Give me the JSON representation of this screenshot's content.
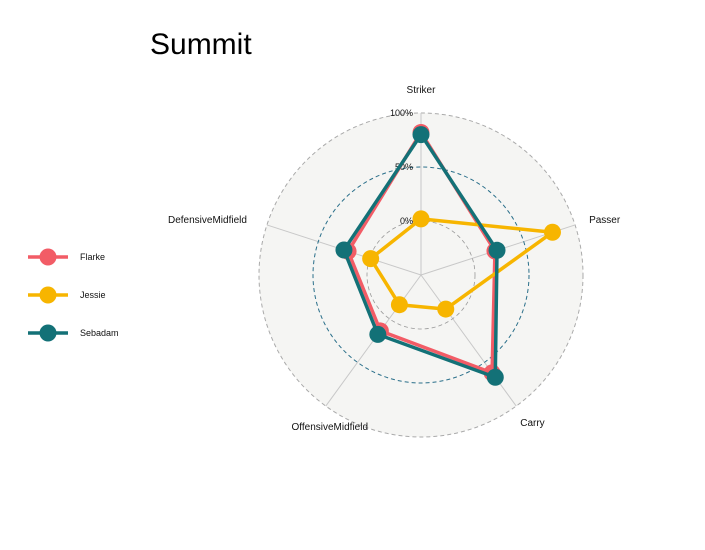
{
  "chart_data": {
    "type": "radar",
    "title": "Summit",
    "axes": [
      "Striker",
      "Passer",
      "Carry",
      "OffensiveMidfield",
      "DefensiveMidfield"
    ],
    "grid_labels": [
      "0%",
      "50%",
      "100%"
    ],
    "grid_values": [
      0,
      0.5,
      1
    ],
    "range": [
      -0.5,
      1
    ],
    "series": [
      {
        "name": "Flarke",
        "color": "#F25C66",
        "values": [
          0.82,
          0.22,
          0.62,
          0.14,
          0.21
        ]
      },
      {
        "name": "Jessie",
        "color": "#F7B500",
        "values": [
          0.02,
          0.78,
          -0.11,
          -0.16,
          -0.01
        ]
      },
      {
        "name": "Sebadam",
        "color": "#137177",
        "values": [
          0.8,
          0.24,
          0.67,
          0.18,
          0.25
        ]
      }
    ],
    "legend_position": "left"
  }
}
